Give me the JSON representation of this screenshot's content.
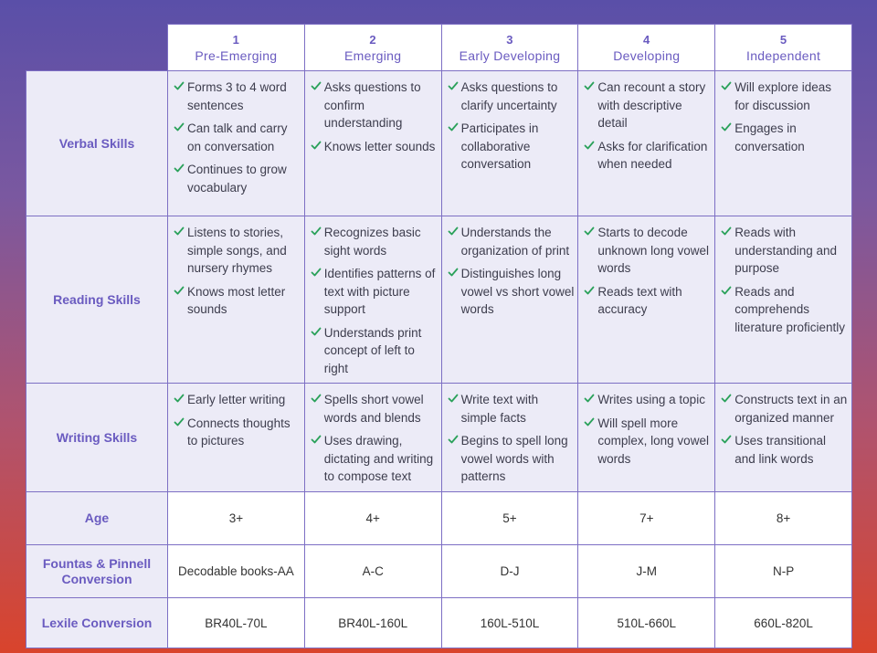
{
  "levels": [
    {
      "num": "1",
      "name": "Pre-Emerging"
    },
    {
      "num": "2",
      "name": "Emerging"
    },
    {
      "num": "3",
      "name": "Early Developing"
    },
    {
      "num": "4",
      "name": "Developing"
    },
    {
      "num": "5",
      "name": "Independent"
    }
  ],
  "skills": [
    {
      "label": "Verbal Skills",
      "cells": [
        [
          "Forms 3 to 4 word sentences",
          "Can talk and carry on conversation",
          "Continues to grow vocabulary"
        ],
        [
          "Asks questions to confirm understanding",
          "Knows letter sounds"
        ],
        [
          "Asks questions to clarify uncertainty",
          "Participates in collaborative conversation"
        ],
        [
          "Can recount a story with descriptive detail",
          "Asks for clarification when needed"
        ],
        [
          "Will explore ideas for discussion",
          "Engages in conversation"
        ]
      ]
    },
    {
      "label": "Reading Skills",
      "cells": [
        [
          "Listens to stories, simple songs, and nursery rhymes",
          "Knows most letter sounds"
        ],
        [
          "Recognizes basic sight words",
          "Identifies patterns of text with picture support",
          "Understands print concept of left to right"
        ],
        [
          "Understands the organization of print",
          "Distinguishes long vowel vs short vowel words"
        ],
        [
          "Starts to decode unknown long vowel words",
          "Reads text with accuracy"
        ],
        [
          "Reads with understanding and purpose",
          "Reads and comprehends literature proficiently"
        ]
      ]
    },
    {
      "label": "Writing Skills",
      "cells": [
        [
          "Early letter writing",
          "Connects thoughts to pictures"
        ],
        [
          "Spells short vowel words and blends",
          "Uses drawing, dictating and writing to compose text"
        ],
        [
          "Write text with simple facts",
          "Begins to spell long vowel words with patterns"
        ],
        [
          "Writes using a topic",
          "Will spell more complex, long vowel words"
        ],
        [
          "Constructs text in an organized manner",
          "Uses transitional and link words"
        ]
      ]
    }
  ],
  "rows": [
    {
      "label": "Age",
      "values": [
        "3+",
        "4+",
        "5+",
        "7+",
        "8+"
      ]
    },
    {
      "label": "Fountas & Pinnell Conversion",
      "values": [
        "Decodable books-AA",
        "A-C",
        "D-J",
        "J-M",
        "N-P"
      ]
    },
    {
      "label": "Lexile Conversion",
      "values": [
        "BR40L-70L",
        "BR40L-160L",
        "160L-510L",
        "510L-660L",
        "660L-820L"
      ]
    }
  ],
  "icons": {
    "check": "check-icon"
  },
  "colors": {
    "accent": "#6a5bc0",
    "check": "#2aa15a",
    "row_bg": "#ecebf7"
  }
}
